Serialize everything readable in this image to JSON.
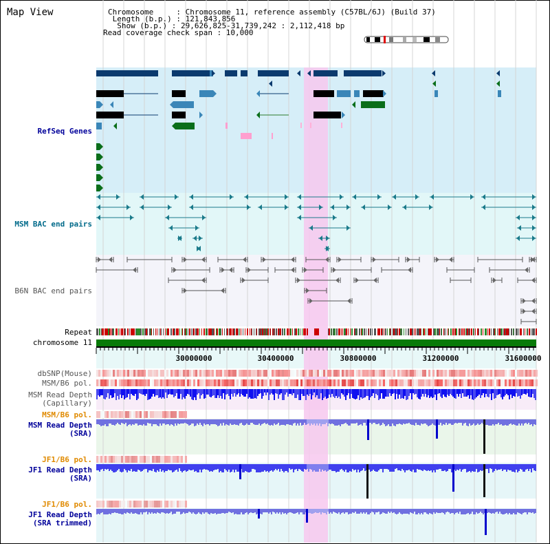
{
  "header": {
    "title": "Map View",
    "info": [
      "Chromosome     : Chromosome 11, reference assembly (C57BL/6J) (Build 37)",
      " Length (b.p.) : 121,843,856",
      "  Show (b.p.) : 29,626,825-31,739,242 : 2,112,418 bp",
      "Read coverage check span : 10,000"
    ]
  },
  "tracks": {
    "refseq": "RefSeq Genes",
    "msm_bac": "MSM BAC end pairs",
    "b6n_bac": "B6N BAC end pairs",
    "repeat": "Repeat",
    "chromosome": "chromosome 11",
    "dbsnp": "dbSNP(Mouse)",
    "msm_b6_pol_1": "MSM/B6 pol.",
    "msm_depth_cap_1": "MSM Read Depth",
    "msm_depth_cap_2": "(Capillary)",
    "msm_b6_pol_2": "MSM/B6 pol.",
    "msm_depth_sra_1": "MSM Read Depth",
    "msm_depth_sra_2": "(SRA)",
    "jf1_b6_pol_1": "JF1/B6 pol.",
    "jf1_depth_sra_1": "JF1 Read Depth",
    "jf1_depth_sra_2": "(SRA)",
    "jf1_b6_pol_2": "JF1/B6 pol.",
    "jf1_depth_trim_1": "JF1 Read Depth",
    "jf1_depth_trim_2": "(SRA trimmed)"
  },
  "ruler": {
    "ticks": [
      "30000000",
      "30400000",
      "30800000",
      "31200000",
      "31600000"
    ]
  },
  "colors": {
    "refseq_dark": "#0b3a6e",
    "refseq_mid": "#3a86b8",
    "refseq_green": "#0a6e1a",
    "refseq_bg": "#d6eef8",
    "bac_bg": "#e2f7f8",
    "b6n_bg": "#f4f4fa",
    "highlight": "#f7c8ef",
    "chromosome": "#087a08",
    "depth": "#2424ee",
    "depth_light": "#7a7ae8",
    "label_blue": "#00009a",
    "label_teal": "#006a8a",
    "label_orange": "#e08a00"
  }
}
